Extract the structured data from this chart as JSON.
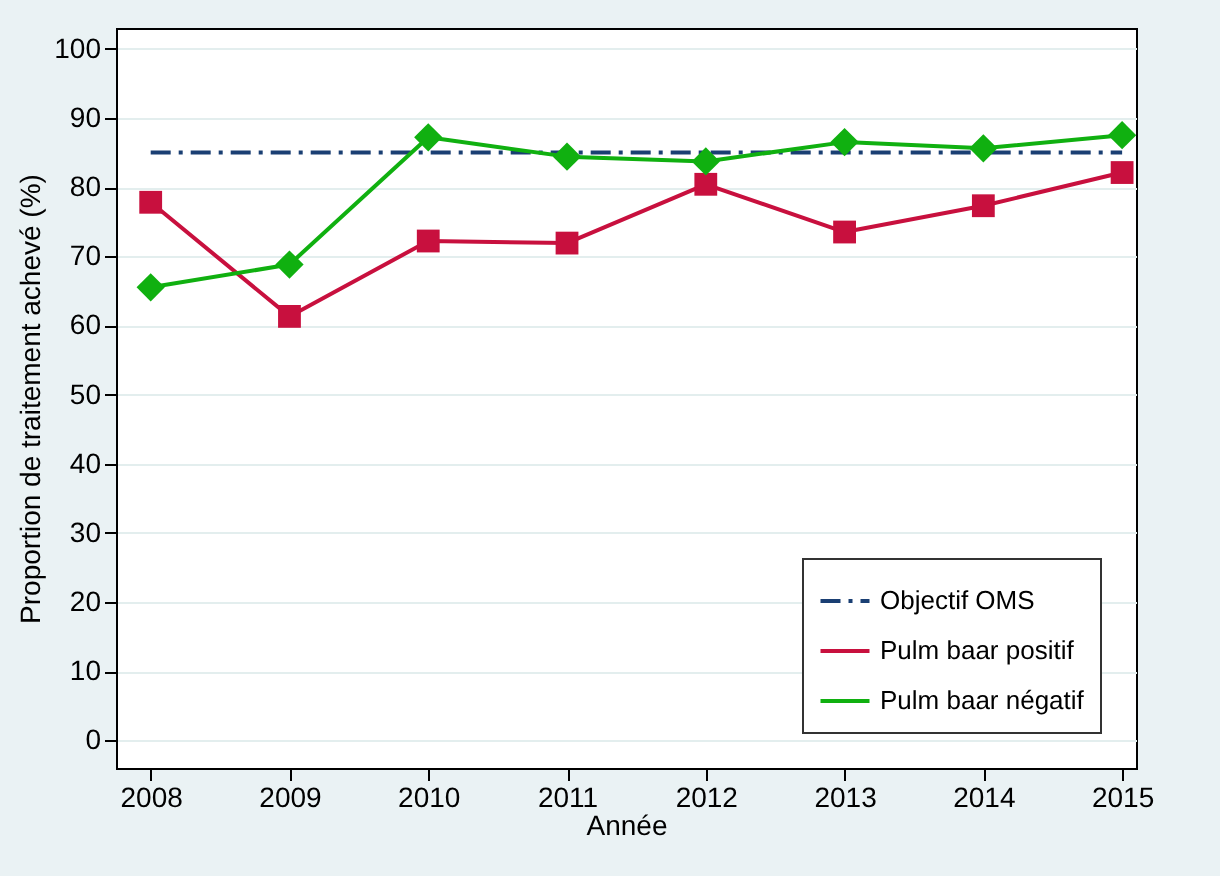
{
  "chart_data": {
    "type": "line",
    "xlabel": "Année",
    "ylabel": "Proportion de traitement achevé (%)",
    "x": [
      2008,
      2009,
      2010,
      2011,
      2012,
      2013,
      2014,
      2015
    ],
    "series": [
      {
        "name": "Objectif OMS",
        "color": "#1a3f73",
        "values": [
          85,
          85,
          85,
          85,
          85,
          85,
          85,
          85
        ],
        "marker": "none",
        "line_style": "dashed"
      },
      {
        "name": "Pulm baar positif",
        "color": "#c8103e",
        "values": [
          77.8,
          61.3,
          72.2,
          71.9,
          80.4,
          73.5,
          77.3,
          82.1
        ],
        "marker": "square",
        "line_style": "solid"
      },
      {
        "name": "Pulm baar négatif",
        "color": "#10b010",
        "values": [
          65.5,
          68.8,
          87.2,
          84.4,
          83.7,
          86.5,
          85.6,
          87.5
        ],
        "marker": "diamond",
        "line_style": "solid"
      }
    ],
    "xlim": [
      2007.75,
      2015.1
    ],
    "xticks": [
      2008,
      2009,
      2010,
      2011,
      2012,
      2013,
      2014,
      2015
    ],
    "ylim": [
      -4,
      103
    ],
    "yticks": [
      0,
      10,
      20,
      30,
      40,
      50,
      60,
      70,
      80,
      90,
      100
    ],
    "grid": "y",
    "legend": "bottom right"
  }
}
